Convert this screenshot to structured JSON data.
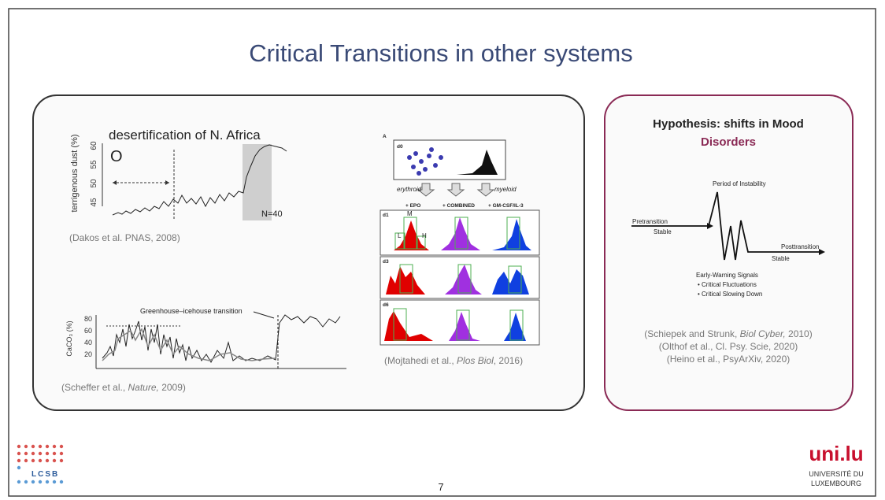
{
  "title": "Critical Transitions in other systems",
  "desertification": {
    "title": "desertification of N. Africa",
    "marker": "O",
    "y_label": "terrigenous dust (%)",
    "yticks": [
      "60",
      "55",
      "50",
      "45"
    ],
    "n_label": "N=40",
    "citation": "(Dakos et al. PNAS, 2008)"
  },
  "greenhouse": {
    "y_label": "CaCO₃ (%)",
    "yticks": [
      "80",
      "60",
      "40",
      "20"
    ],
    "annotation": "Greenhouse–icehouse transition",
    "citation": [
      "(Scheffer et al., ",
      "Nature,",
      " 2009)"
    ]
  },
  "cells": {
    "panel": "A",
    "day0": "d0",
    "left_branch": "erythroid",
    "right_branch": "myeloid",
    "conditions": [
      "+ EPO",
      "+ COMBINED",
      "+ GM-CSF/IL-3"
    ],
    "days": [
      "d1",
      "d3",
      "d6"
    ],
    "gates": [
      "L",
      "M",
      "H"
    ],
    "citation": [
      "(Mojtahedi et al., ",
      "Plos Biol",
      ", 2016)"
    ]
  },
  "hypothesis": {
    "title": "Hypothesis: shifts in Mood",
    "title_highlight": "Disorders",
    "period": "Period of Instability",
    "pre": "Pretransition",
    "pre_stable": "Stable",
    "post": "Posttransition",
    "post_stable": "Stable",
    "ews": "Early-Warning Signals",
    "ews_items": [
      "• Critical Fluctuations",
      "• Critical Slowing Down"
    ],
    "citations": [
      [
        "(Schiepek and Strunk, ",
        "Biol Cyber,",
        " 2010)"
      ],
      [
        "(Olthof et al., Cl. Psy. Scie, 2020)"
      ],
      [
        "(Heino et al., PsyArXiv, 2020)"
      ]
    ]
  },
  "page_number": "7",
  "logos": {
    "lcsb": "LCSB",
    "unilu": "uni.lu",
    "univ_1": "UNIVERSITÉ DU",
    "univ_2": "LUXEMBOURG"
  }
}
